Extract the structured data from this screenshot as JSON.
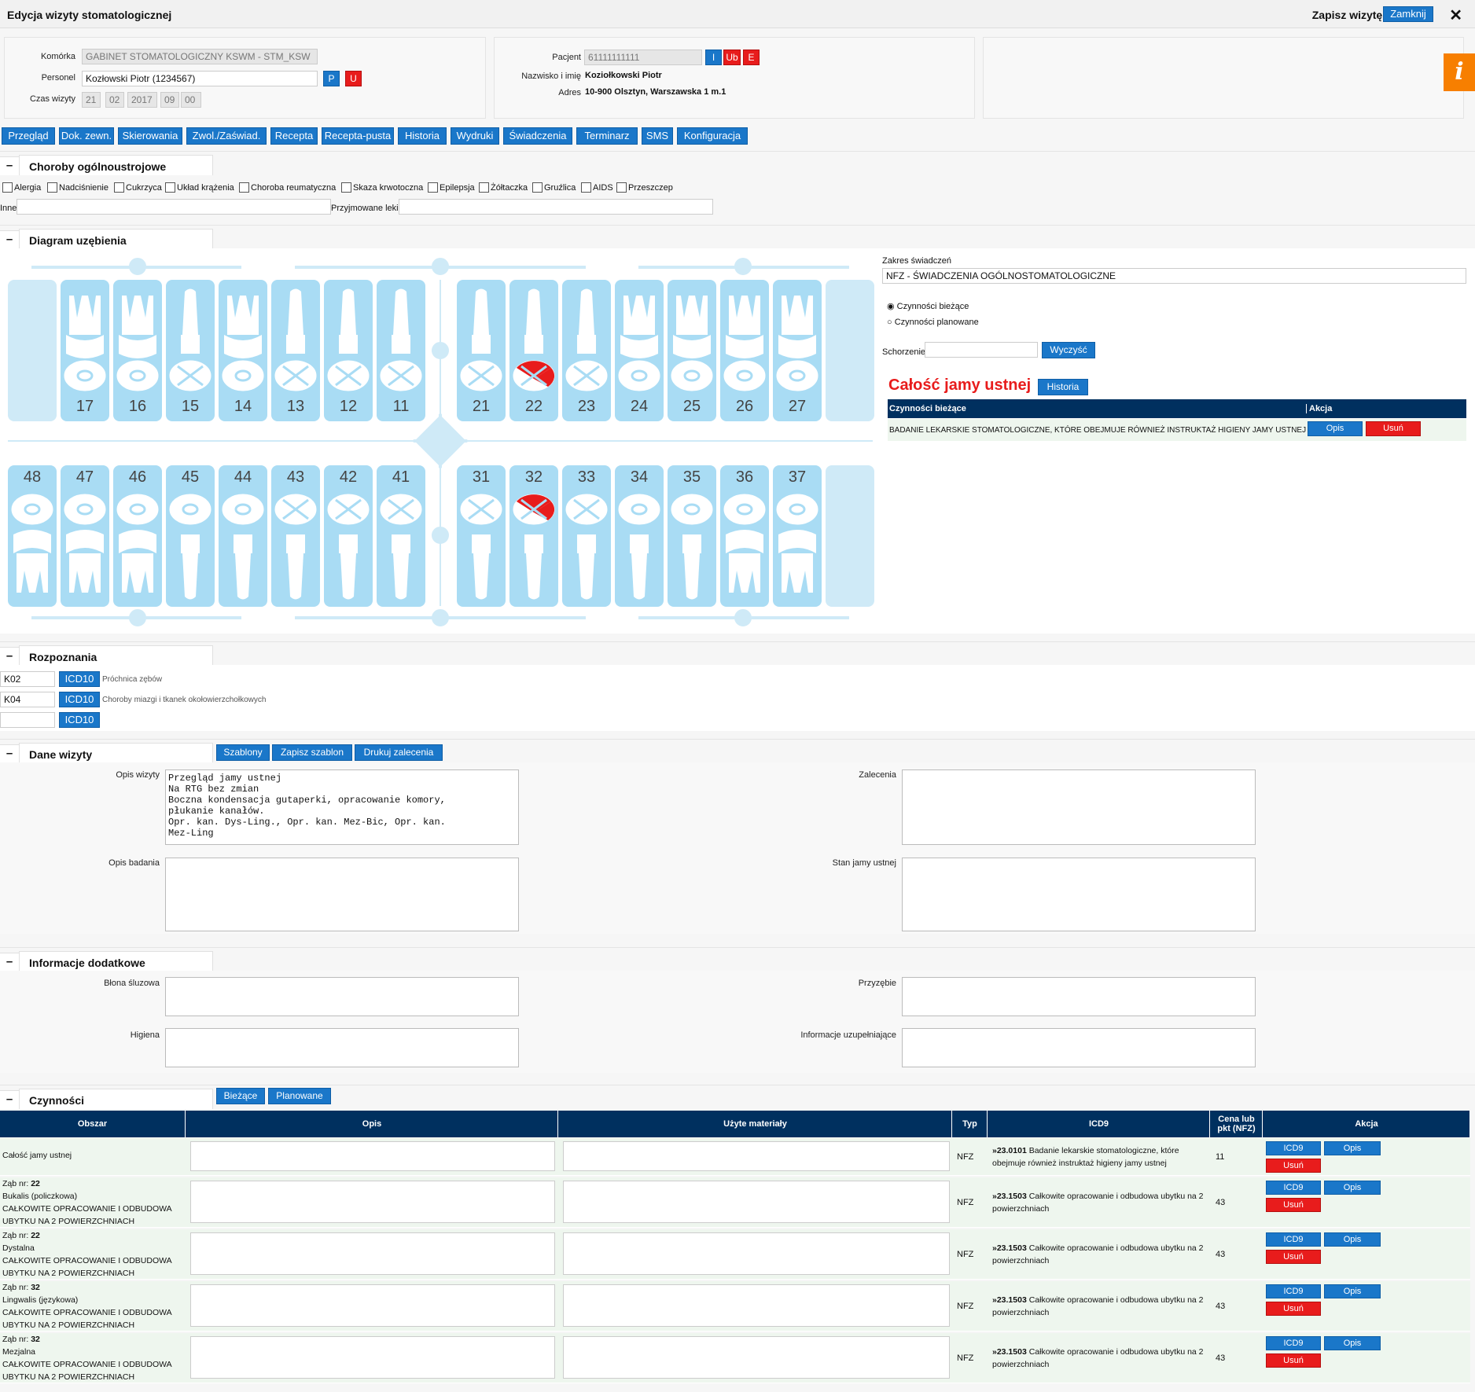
{
  "window": {
    "title": "Edycja wizyty stomatologicznej",
    "save_label": "Zapisz wizytę i",
    "close_label": "Zamknij",
    "x_label": "✕"
  },
  "info_tab": "i",
  "cell": {
    "label": "Komórka",
    "value": "GABINET STOMATOLOGICZNY KSWM - STM_KSW"
  },
  "staff": {
    "label": "Personel",
    "value": "Kozłowski Piotr (1234567)",
    "p": "P",
    "u": "U"
  },
  "time": {
    "label": "Czas wizyty",
    "day": "21",
    "month": "02",
    "year": "2017",
    "hour": "09",
    "min": "00"
  },
  "patient": {
    "label": "Pacjent",
    "value": "61111111111",
    "i": "I",
    "ub": "Ub",
    "e": "E",
    "name_label": "Nazwisko i imię",
    "name": "Koziołkowski Piotr",
    "addr_label": "Adres",
    "addr": "10-900 Olsztyn, Warszawska 1 m.1"
  },
  "nav": [
    "Przegląd",
    "Dok. zewn.",
    "Skierowania",
    "Zwol./Zaświad.",
    "Recepta",
    "Recepta-pusta",
    "Historia",
    "Wydruki",
    "Świadczenia",
    "Terminarz",
    "SMS",
    "Konfiguracja"
  ],
  "sections": {
    "diseases": "Choroby ogólnoustrojowe",
    "diagram": "Diagram uzębienia",
    "diagnoses": "Rozpoznania",
    "visit": "Dane wizyty",
    "extra": "Informacje dodatkowe",
    "activities": "Czynności",
    "toggle": "–"
  },
  "diseases": [
    "Alergia",
    "Nadciśnienie",
    "Cukrzyca",
    "Układ krążenia",
    "Choroba reumatyczna",
    "Skaza krwotoczna",
    "Epilepsja",
    "Żółtaczka",
    "Gruźlica",
    "AIDS",
    "Przeszczep"
  ],
  "other_label": "Inne",
  "meds_label": "Przyjmowane leki",
  "teeth_upper": [
    "17",
    "16",
    "15",
    "14",
    "13",
    "12",
    "11",
    "21",
    "22",
    "23",
    "24",
    "25",
    "26",
    "27"
  ],
  "teeth_lower": [
    "48",
    "47",
    "46",
    "45",
    "44",
    "43",
    "42",
    "41",
    "31",
    "32",
    "33",
    "34",
    "35",
    "36",
    "37"
  ],
  "scope": {
    "label": "Zakres świadczeń",
    "value": "NFZ - ŚWIADCZENIA OGÓLNOSTOMATOLOGICZNE",
    "r1": "Czynności bieżące",
    "r2": "Czynności planowane",
    "disease_label": "Schorzenie",
    "clear": "Wyczyść"
  },
  "whole": {
    "title": "Całość jamy ustnej",
    "history": "Historia",
    "col1": "Czynności bieżące",
    "col2": "Akcja",
    "item": "BADANIE LEKARSKIE STOMATOLOGICZNE, KTÓRE OBEJMUJE RÓWNIEŻ INSTRUKTAŻ HIGIENY JAMY USTNEJ",
    "opis": "Opis",
    "usun": "Usuń"
  },
  "diag": [
    {
      "code": "K02",
      "btn": "ICD10",
      "desc": "Próchnica zębów"
    },
    {
      "code": "K04",
      "btn": "ICD10",
      "desc": "Choroby miazgi i tkanek okołowierzchołkowych"
    },
    {
      "code": "",
      "btn": "ICD10",
      "desc": ""
    }
  ],
  "visit_btns": [
    "Szablony",
    "Zapisz szablon",
    "Drukuj zalecenia"
  ],
  "visit": {
    "opis_label": "Opis wizyty",
    "opis": "Przegląd jamy ustnej\nNa RTG bez zmian\nBoczna kondensacja gutaperki, opracowanie komory,\npłukanie kanałów.\nOpr. kan. Dys-Ling., Opr. kan. Mez-Bic, Opr. kan.\nMez-Ling",
    "zal_label": "Zalecenia",
    "badania_label": "Opis badania",
    "stan_label": "Stan jamy ustnej"
  },
  "extra": {
    "blona": "Błona śluzowa",
    "przyzebie": "Przyzębie",
    "higiena": "Higiena",
    "uzup": "Informacje uzupełniające"
  },
  "act_btns": [
    "Bieżące",
    "Planowane"
  ],
  "act_cols": [
    "Obszar",
    "Opis",
    "Użyte materiały",
    "Typ",
    "ICD9",
    "Cena lub pkt (NFZ)",
    "Akcja"
  ],
  "act_rows": [
    {
      "area": [
        "Całość jamy ustnej"
      ],
      "typ": "NFZ",
      "code": "»23.0101",
      "icd": "Badanie lekarskie stomatologiczne, które obejmuje również instruktaż higieny jamy ustnej",
      "price": "11"
    },
    {
      "area": [
        "Ząb nr: ",
        "22",
        "Bukalis (policzkowa)",
        "CAŁKOWITE OPRACOWANIE I ODBUDOWA",
        "UBYTKU NA 2 POWIERZCHNIACH"
      ],
      "typ": "NFZ",
      "code": "»23.1503",
      "icd": "Całkowite opracowanie i odbudowa ubytku na 2 powierzchniach",
      "price": "43"
    },
    {
      "area": [
        "Ząb nr: ",
        "22",
        "Dystalna",
        "CAŁKOWITE OPRACOWANIE I ODBUDOWA",
        "UBYTKU NA 2 POWIERZCHNIACH"
      ],
      "typ": "NFZ",
      "code": "»23.1503",
      "icd": "Całkowite opracowanie i odbudowa ubytku na 2 powierzchniach",
      "price": "43"
    },
    {
      "area": [
        "Ząb nr: ",
        "32",
        "Lingwalis (językowa)",
        "CAŁKOWITE OPRACOWANIE I ODBUDOWA",
        "UBYTKU NA 2 POWIERZCHNIACH"
      ],
      "typ": "NFZ",
      "code": "»23.1503",
      "icd": "Całkowite opracowanie i odbudowa ubytku na 2 powierzchniach",
      "price": "43"
    },
    {
      "area": [
        "Ząb nr: ",
        "32",
        "Mezjalna",
        "CAŁKOWITE OPRACOWANIE I ODBUDOWA",
        "UBYTKU NA 2 POWIERZCHNIACH"
      ],
      "typ": "NFZ",
      "code": "»23.1503",
      "icd": "Całkowite opracowanie i odbudowa ubytku na 2 powierzchniach",
      "price": "43"
    }
  ],
  "act_action": {
    "icd9": "ICD9",
    "opis": "Opis",
    "usun": "Usuń"
  },
  "colors": {
    "accent": "#1a77c9",
    "danger": "#e81c1c",
    "header": "#00305f",
    "tooth": "#a9dcf4",
    "orange": "#f77f00"
  }
}
